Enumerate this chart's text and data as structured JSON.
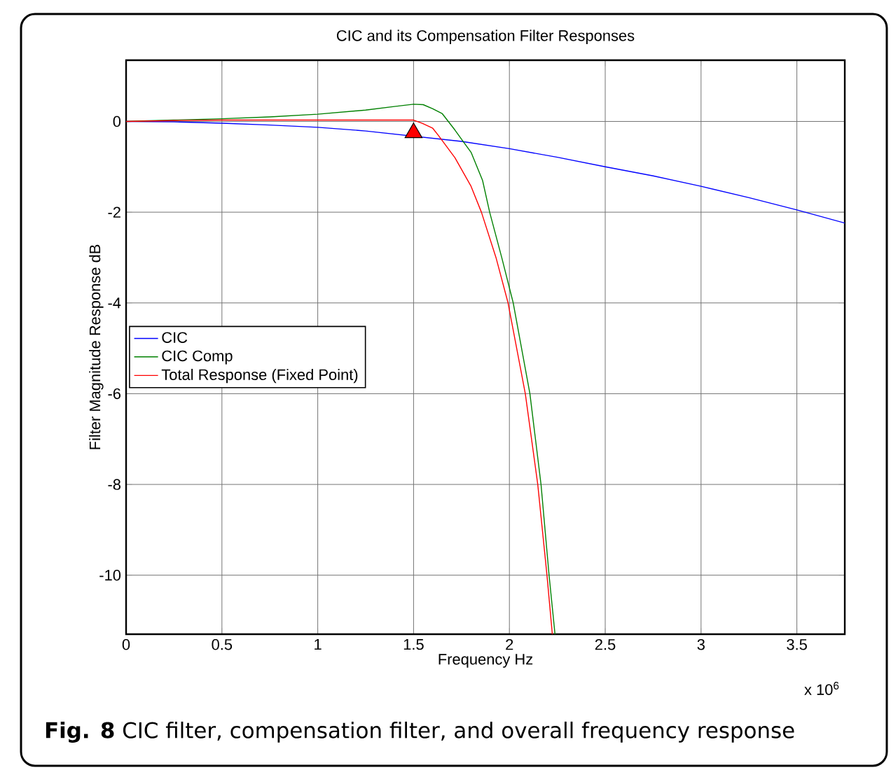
{
  "chart_data": {
    "type": "line",
    "title": "CIC and its Compensation Filter Responses",
    "xlabel": "Frequency Hz",
    "ylabel": "Filter Magnitude Response dB",
    "annotations": [
      "x 10$^{6}$",
      "**Fig. 8** CIC filter, compensation filter, and overall frequency response"
    ],
    "xlim": [
      0,
      3.75
    ],
    "ylim": [
      -11.3,
      1.35
    ],
    "xticks": [
      0,
      0.5,
      1,
      1.5,
      2,
      2.5,
      3,
      3.5
    ],
    "yticks": [
      -10,
      -8,
      -6,
      -4,
      -2,
      0
    ],
    "grid": true,
    "legend": "center left",
    "line_style": "solid",
    "series": [
      {
        "name": "CIC",
        "color": "#0000ff",
        "x": [
          0,
          0.25,
          0.5,
          0.75,
          1,
          1.25,
          1.75,
          2,
          2.25,
          2.5,
          2.75,
          3,
          3.25,
          3.5,
          3.75
        ],
        "values": [
          0,
          -0.01,
          -0.04,
          -0.08,
          -0.13,
          -0.21,
          -0.44,
          -0.6,
          -0.79,
          -1.0,
          -1.2,
          -1.43,
          -1.68,
          -1.95,
          -2.24
        ]
      },
      {
        "name": "CIC Comp",
        "color": "#008000",
        "x": [
          0,
          0.5,
          0.75,
          1,
          1.25,
          1.4,
          1.5,
          1.55,
          1.6,
          1.65,
          1.716,
          1.76,
          1.8,
          1.86,
          1.897,
          1.96,
          2.02,
          2.107,
          2.165,
          2.207,
          2.238
        ],
        "values": [
          0,
          0.06,
          0.1,
          0.16,
          0.25,
          0.33,
          0.38,
          0.37,
          0.28,
          0.17,
          -0.19,
          -0.45,
          -0.68,
          -1.3,
          -2,
          -3,
          -4,
          -6,
          -8,
          -10,
          -11.3
        ]
      },
      {
        "name": "Total Response (Fixed Point)",
        "color": "#ff0000",
        "x": [
          0,
          0.25,
          0.5,
          1,
          1.5,
          1.545,
          1.6,
          1.63,
          1.716,
          1.8,
          1.854,
          1.93,
          1.993,
          2.083,
          2.148,
          2.196,
          2.224
        ],
        "values": [
          0,
          0.02,
          0.03,
          0.03,
          0.03,
          -0.04,
          -0.15,
          -0.31,
          -0.8,
          -1.43,
          -2,
          -3,
          -4,
          -6,
          -8,
          -10,
          -11.3
        ]
      },
      {
        "type": "scatter",
        "marker": "triangle",
        "color": "#ff0000",
        "x": [
          1.5
        ],
        "values": [
          -0.25
        ]
      }
    ]
  }
}
